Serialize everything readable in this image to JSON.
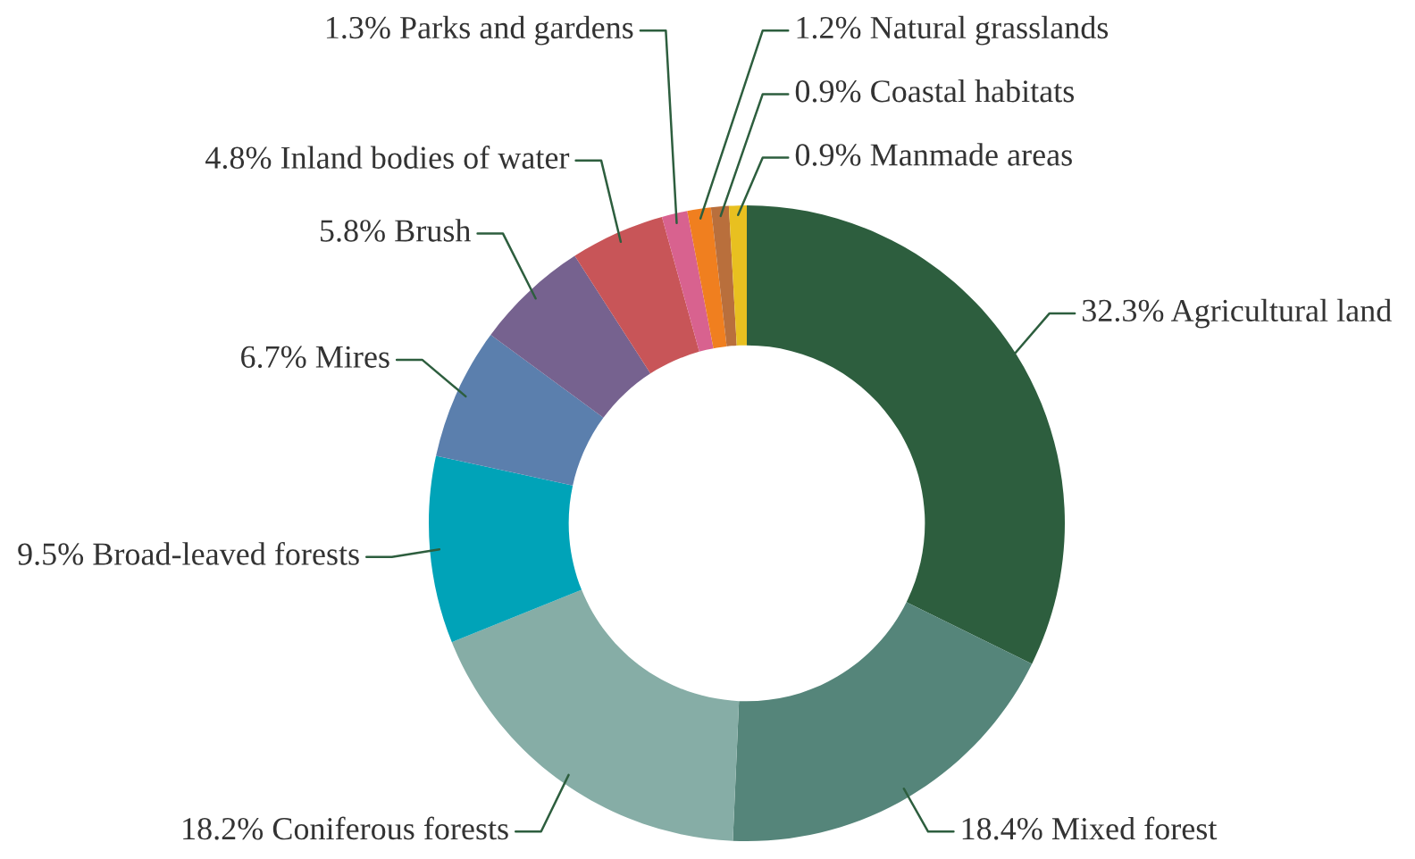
{
  "chart_data": {
    "type": "donut",
    "categories": [
      "Agricultural land",
      "Mixed forest",
      "Coniferous forests",
      "Broad-leaved forests",
      "Mires",
      "Brush",
      "Inland bodies of water",
      "Parks and gardens",
      "Natural grasslands",
      "Coastal habitats",
      "Manmade areas"
    ],
    "values": [
      32.3,
      18.4,
      18.2,
      9.5,
      6.7,
      5.8,
      4.8,
      1.3,
      1.2,
      0.9,
      0.9
    ],
    "value_labels": [
      "32.3%",
      "18.4%",
      "18.2%",
      "9.5%",
      "6.7%",
      "5.8%",
      "4.8%",
      "1.3%",
      "1.2%",
      "0.9%",
      "0.9%"
    ],
    "colors": [
      "#2d5e3e",
      "#55857a",
      "#86ada6",
      "#00a3b8",
      "#5b7fad",
      "#76628f",
      "#c85558",
      "#d8628f",
      "#f07f1f",
      "#b96f3c",
      "#e8c020"
    ]
  }
}
